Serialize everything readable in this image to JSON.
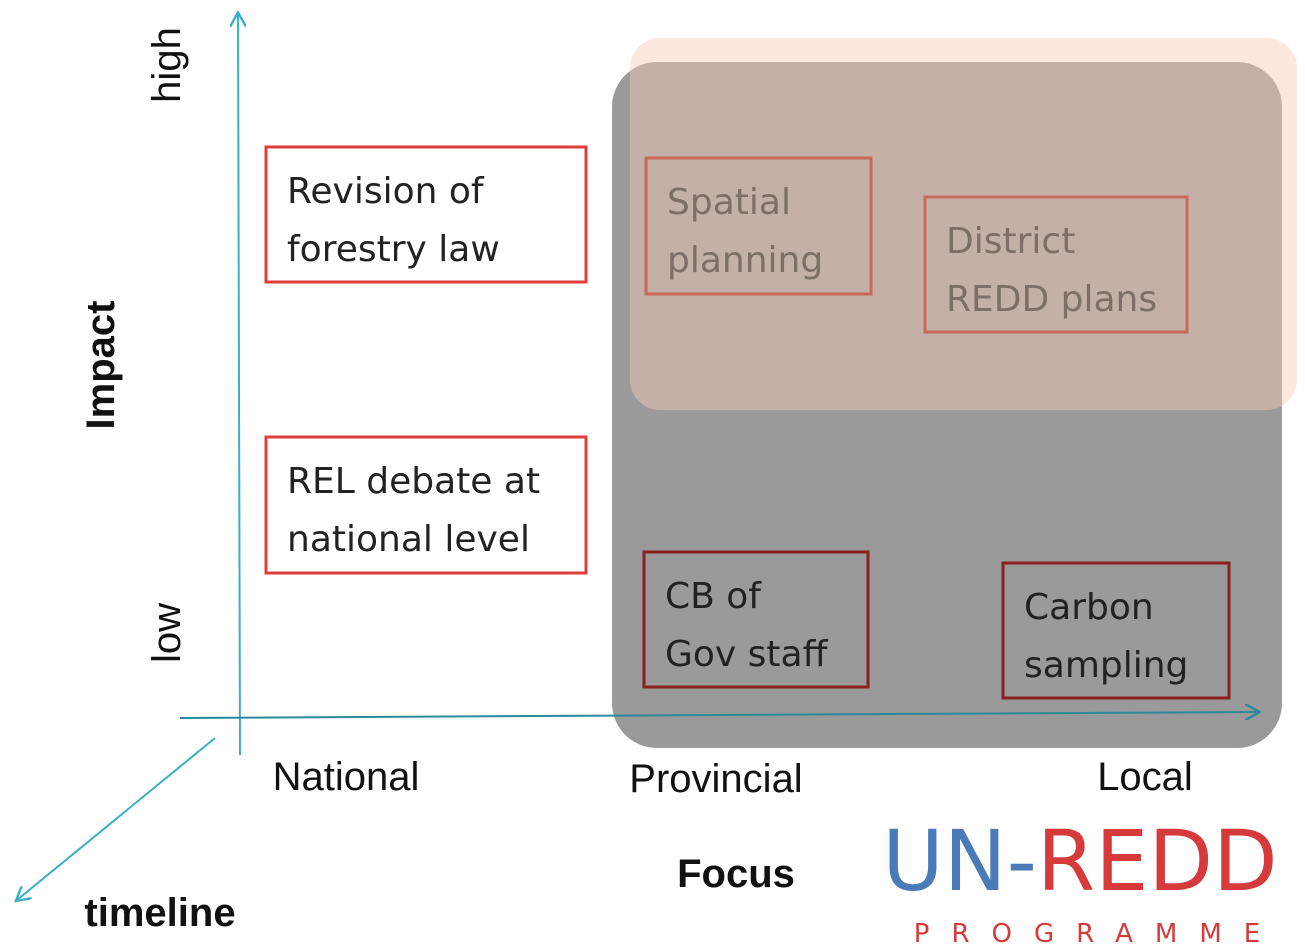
{
  "axes": {
    "y_high": "high",
    "y_low": "low",
    "y_title": "Impact",
    "x_labels": [
      "National",
      "Provincial",
      "Local"
    ],
    "x_title": "Focus",
    "z_title": "timeline"
  },
  "boxes": [
    {
      "lines": [
        "Revision of",
        "forestry law"
      ]
    },
    {
      "lines": [
        "REL debate at",
        "national level"
      ]
    },
    {
      "lines": [
        "Spatial",
        "planning"
      ]
    },
    {
      "lines": [
        "District",
        "REDD plans"
      ]
    },
    {
      "lines": [
        "CB of",
        "Gov staff"
      ]
    },
    {
      "lines": [
        "Carbon",
        "sampling"
      ]
    }
  ],
  "logo": {
    "part1": "UN-",
    "part2": "REDD",
    "subtitle": "PROGRAMME"
  }
}
